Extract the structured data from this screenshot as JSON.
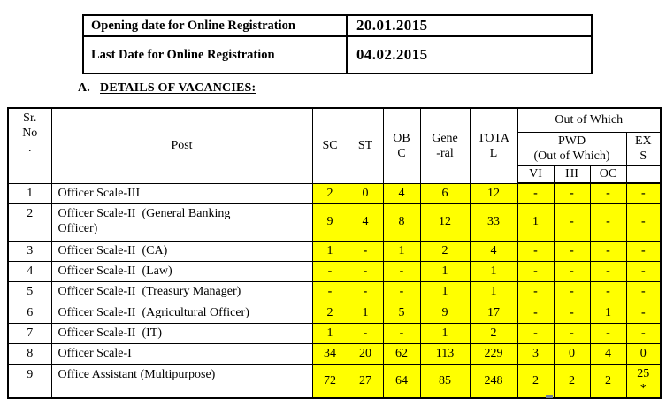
{
  "registration": {
    "rows": [
      {
        "label": "Opening date for Online Registration",
        "value": "20.01.2015"
      },
      {
        "label": "Last Date for Online Registration",
        "value": "04.02.2015"
      }
    ]
  },
  "section": {
    "letter": "A.",
    "title": "DETAILS OF VACANCIES:"
  },
  "vacancies": {
    "highlight_color": "#FFFF00",
    "headers": {
      "sr_no": "Sr.\nNo\n.",
      "post": "Post",
      "sc": "SC",
      "st": "ST",
      "obc": "OB\nC",
      "general": "Gene\n-ral",
      "total": "TOTA\nL",
      "out_of_which": "Out of Which",
      "pwd": "PWD\n(Out of Which)",
      "vi": "VI",
      "hi": "HI",
      "oc": "OC",
      "exs": "EX\nS"
    },
    "rows": [
      {
        "sr": "1",
        "post": "Officer Scale-III",
        "values": [
          "2",
          "0",
          "4",
          "6",
          "12",
          "-",
          "-",
          "-",
          "-"
        ]
      },
      {
        "sr": "2",
        "post": "Officer Scale-II  (General Banking\nOfficer)",
        "values": [
          "9",
          "4",
          "8",
          "12",
          "33",
          "1",
          "-",
          "-",
          "-"
        ]
      },
      {
        "sr": "3",
        "post": "Officer Scale-II  (CA)",
        "values": [
          "1",
          "-",
          "1",
          "2",
          "4",
          "-",
          "-",
          "-",
          "-"
        ]
      },
      {
        "sr": "4",
        "post": "Officer Scale-II  (Law)",
        "values": [
          "-",
          "-",
          "-",
          "1",
          "1",
          "-",
          "-",
          "-",
          "-"
        ]
      },
      {
        "sr": "5",
        "post": "Officer Scale-II  (Treasury Manager)",
        "values": [
          "-",
          "-",
          "-",
          "1",
          "1",
          "-",
          "-",
          "-",
          "-"
        ]
      },
      {
        "sr": "6",
        "post": "Officer Scale-II  (Agricultural Officer)",
        "values": [
          "2",
          "1",
          "5",
          "9",
          "17",
          "-",
          "-",
          "1",
          "-"
        ]
      },
      {
        "sr": "7",
        "post": "Officer Scale-II  (IT)",
        "values": [
          "1",
          "-",
          "-",
          "1",
          "2",
          "-",
          "-",
          "-",
          "-"
        ]
      },
      {
        "sr": "8",
        "post": "Officer Scale-I",
        "values": [
          "34",
          "20",
          "62",
          "113",
          "229",
          "3",
          "0",
          "4",
          "0"
        ]
      },
      {
        "sr": "9",
        "post": "Office Assistant (Multipurpose)",
        "values": [
          "72",
          "27",
          "64",
          "85",
          "248",
          "2",
          "2",
          "2",
          "25\n*"
        ]
      }
    ]
  }
}
